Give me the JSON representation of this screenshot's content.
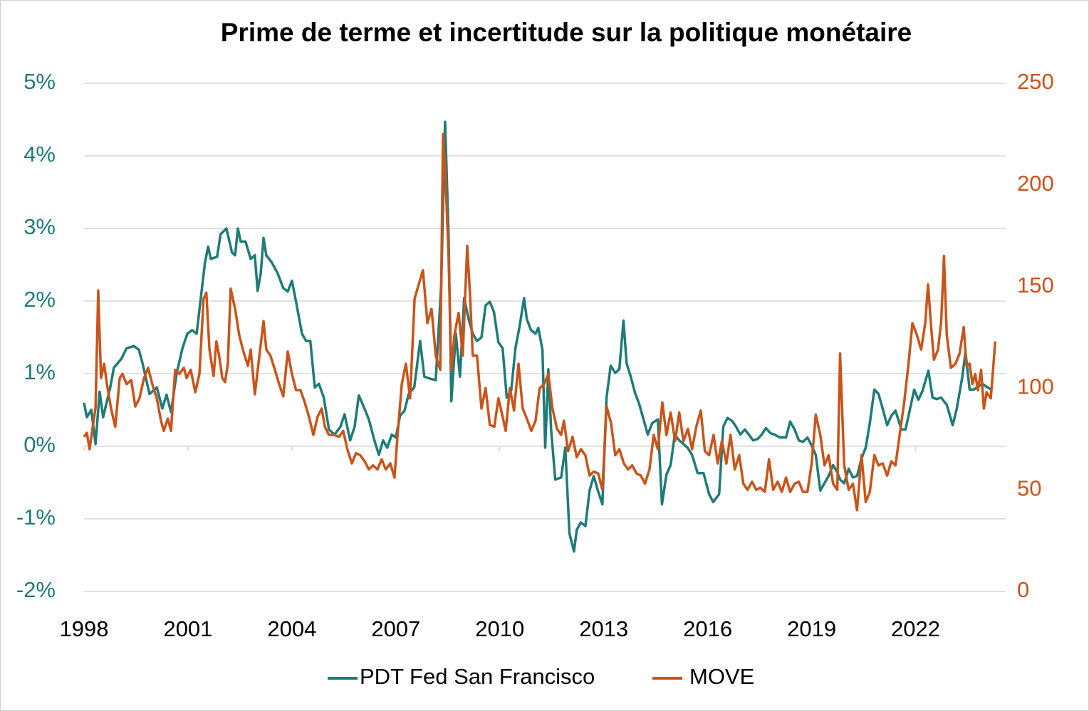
{
  "chart_data": {
    "type": "line",
    "title": "Prime de terme et incertitude sur la politique monétaire",
    "xlim": [
      1998,
      2024.6
    ],
    "xticks": [
      1998,
      2001,
      2004,
      2007,
      2010,
      2013,
      2016,
      2019,
      2022
    ],
    "ylim": [
      -2,
      5
    ],
    "yticks": [
      {
        "value": -2,
        "label": "-2%"
      },
      {
        "value": -1,
        "label": "-1%"
      },
      {
        "value": 0,
        "label": "0%"
      },
      {
        "value": 1,
        "label": "1%"
      },
      {
        "value": 2,
        "label": "2%"
      },
      {
        "value": 3,
        "label": "3%"
      },
      {
        "value": 4,
        "label": "4%"
      },
      {
        "value": 5,
        "label": "5%"
      }
    ],
    "y2lim": [
      0,
      250
    ],
    "y2ticks": [
      0,
      50,
      100,
      150,
      200,
      250
    ],
    "grid": true,
    "legend": "bottom",
    "series": [
      {
        "name": "PDT Fed San Francisco",
        "color": "#1f7b78",
        "x": [
          1998.0,
          1998.08,
          1998.21,
          1998.33,
          1998.45,
          1998.55,
          1998.76,
          1998.86,
          1999.07,
          1999.23,
          1999.44,
          1999.58,
          1999.68,
          1999.89,
          2000.1,
          2000.26,
          2000.38,
          2000.51,
          2000.67,
          2000.84,
          2000.98,
          2001.12,
          2001.25,
          2001.37,
          2001.49,
          2001.58,
          2001.66,
          2001.84,
          2001.94,
          2002.11,
          2002.27,
          2002.36,
          2002.44,
          2002.52,
          2002.66,
          2002.81,
          2002.93,
          2003.01,
          2003.1,
          2003.18,
          2003.26,
          2003.42,
          2003.59,
          2003.75,
          2003.88,
          2004.0,
          2004.12,
          2004.29,
          2004.41,
          2004.53,
          2004.66,
          2004.78,
          2004.92,
          2005.07,
          2005.23,
          2005.4,
          2005.52,
          2005.68,
          2005.81,
          2005.93,
          2006.05,
          2006.22,
          2006.38,
          2006.51,
          2006.63,
          2006.75,
          2006.88,
          2007.0,
          2007.12,
          2007.25,
          2007.37,
          2007.53,
          2007.7,
          2007.82,
          2007.99,
          2008.15,
          2008.31,
          2008.42,
          2008.52,
          2008.6,
          2008.73,
          2008.85,
          2008.97,
          2009.1,
          2009.22,
          2009.34,
          2009.47,
          2009.59,
          2009.71,
          2009.83,
          2009.96,
          2010.08,
          2010.2,
          2010.33,
          2010.45,
          2010.57,
          2010.7,
          2010.78,
          2010.9,
          2011.03,
          2011.11,
          2011.23,
          2011.31,
          2011.4,
          2011.48,
          2011.6,
          2011.77,
          2011.89,
          2012.01,
          2012.14,
          2012.22,
          2012.34,
          2012.47,
          2012.59,
          2012.71,
          2012.83,
          2012.96,
          2013.08,
          2013.2,
          2013.33,
          2013.45,
          2013.57,
          2013.66,
          2013.78,
          2013.9,
          2014.03,
          2014.15,
          2014.27,
          2014.4,
          2014.56,
          2014.68,
          2014.81,
          2014.93,
          2015.05,
          2015.18,
          2015.3,
          2015.42,
          2015.55,
          2015.71,
          2015.88,
          2016.04,
          2016.16,
          2016.33,
          2016.45,
          2016.57,
          2016.7,
          2016.82,
          2016.94,
          2017.07,
          2017.19,
          2017.31,
          2017.44,
          2017.56,
          2017.68,
          2017.81,
          2017.93,
          2018.09,
          2018.26,
          2018.38,
          2018.51,
          2018.63,
          2018.75,
          2018.88,
          2019.0,
          2019.12,
          2019.25,
          2019.37,
          2019.49,
          2019.62,
          2019.74,
          2019.82,
          2019.94,
          2020.07,
          2020.19,
          2020.31,
          2020.44,
          2020.56,
          2020.68,
          2020.81,
          2020.93,
          2021.05,
          2021.18,
          2021.3,
          2021.42,
          2021.59,
          2021.71,
          2021.83,
          2021.96,
          2022.08,
          2022.2,
          2022.37,
          2022.49,
          2022.61,
          2022.74,
          2022.9,
          2023.07,
          2023.19,
          2023.35,
          2023.44,
          2023.56,
          2023.68,
          2023.81,
          2023.93,
          2024.05,
          2024.18
        ],
        "values": [
          0.6,
          0.4,
          0.5,
          0.03,
          0.75,
          0.4,
          0.82,
          1.08,
          1.2,
          1.35,
          1.38,
          1.33,
          1.16,
          0.72,
          0.81,
          0.52,
          0.71,
          0.47,
          1.0,
          1.35,
          1.55,
          1.6,
          1.55,
          2.04,
          2.53,
          2.75,
          2.58,
          2.61,
          2.92,
          3.0,
          2.67,
          2.63,
          3.0,
          2.82,
          2.82,
          2.58,
          2.63,
          2.14,
          2.38,
          2.87,
          2.63,
          2.53,
          2.38,
          2.18,
          2.13,
          2.28,
          1.99,
          1.55,
          1.45,
          1.45,
          0.81,
          0.86,
          0.67,
          0.23,
          0.16,
          0.27,
          0.44,
          0.08,
          0.27,
          0.7,
          0.57,
          0.37,
          0.08,
          -0.12,
          0.08,
          -0.02,
          0.16,
          0.12,
          0.42,
          0.49,
          0.72,
          0.81,
          1.45,
          0.96,
          0.93,
          0.91,
          2.23,
          4.47,
          2.92,
          0.62,
          1.55,
          0.96,
          2.04,
          1.75,
          1.55,
          1.45,
          1.5,
          1.94,
          1.99,
          1.85,
          1.43,
          1.35,
          0.67,
          0.77,
          1.35,
          1.65,
          2.04,
          1.75,
          1.6,
          1.55,
          1.63,
          1.33,
          -0.02,
          1.06,
          0.23,
          -0.46,
          -0.43,
          -0.02,
          -1.2,
          -1.45,
          -1.15,
          -1.05,
          -1.1,
          -0.61,
          -0.41,
          -0.61,
          -0.8,
          0.67,
          1.11,
          1.01,
          1.06,
          1.73,
          1.14,
          0.96,
          0.74,
          0.57,
          0.37,
          0.16,
          0.32,
          0.37,
          -0.8,
          -0.39,
          -0.26,
          0.16,
          0.08,
          0.03,
          -0.02,
          -0.12,
          -0.37,
          -0.37,
          -0.66,
          -0.77,
          -0.66,
          0.27,
          0.39,
          0.35,
          0.27,
          0.16,
          0.23,
          0.16,
          0.08,
          0.1,
          0.16,
          0.25,
          0.18,
          0.16,
          0.12,
          0.12,
          0.34,
          0.23,
          0.08,
          0.06,
          0.12,
          0.01,
          -0.12,
          -0.61,
          -0.51,
          -0.41,
          -0.26,
          -0.36,
          -0.46,
          -0.51,
          -0.31,
          -0.43,
          -0.41,
          -0.17,
          -0.02,
          0.32,
          0.78,
          0.72,
          0.52,
          0.29,
          0.42,
          0.49,
          0.23,
          0.23,
          0.49,
          0.78,
          0.64,
          0.76,
          1.04,
          0.67,
          0.65,
          0.67,
          0.57,
          0.29,
          0.52,
          0.96,
          1.3,
          0.78,
          0.78,
          0.82,
          0.86,
          0.82,
          0.78
        ]
      },
      {
        "name": "MOVE",
        "color": "#c9541a",
        "axis": "y2",
        "x": [
          1998.0,
          1998.08,
          1998.16,
          1998.25,
          1998.33,
          1998.41,
          1998.49,
          1998.58,
          1998.66,
          1998.78,
          1998.9,
          1999.03,
          1999.11,
          1999.23,
          1999.36,
          1999.48,
          1999.6,
          1999.73,
          1999.85,
          1999.97,
          2000.1,
          2000.22,
          2000.3,
          2000.42,
          2000.51,
          2000.63,
          2000.75,
          2000.88,
          2000.96,
          2001.08,
          2001.21,
          2001.33,
          2001.45,
          2001.53,
          2001.62,
          2001.74,
          2001.82,
          2001.9,
          2001.99,
          2002.07,
          2002.15,
          2002.23,
          2002.36,
          2002.48,
          2002.6,
          2002.73,
          2002.81,
          2002.93,
          2003.06,
          2003.18,
          2003.26,
          2003.38,
          2003.51,
          2003.63,
          2003.75,
          2003.88,
          2004.0,
          2004.12,
          2004.25,
          2004.37,
          2004.49,
          2004.62,
          2004.74,
          2004.86,
          2004.95,
          2005.07,
          2005.23,
          2005.36,
          2005.48,
          2005.6,
          2005.73,
          2005.85,
          2005.97,
          2006.1,
          2006.22,
          2006.34,
          2006.47,
          2006.59,
          2006.71,
          2006.84,
          2006.96,
          2007.04,
          2007.17,
          2007.29,
          2007.41,
          2007.54,
          2007.66,
          2007.78,
          2007.91,
          2008.03,
          2008.15,
          2008.28,
          2008.36,
          2008.44,
          2008.52,
          2008.6,
          2008.69,
          2008.81,
          2008.93,
          2009.06,
          2009.14,
          2009.22,
          2009.34,
          2009.47,
          2009.59,
          2009.71,
          2009.84,
          2009.96,
          2010.08,
          2010.17,
          2010.29,
          2010.41,
          2010.54,
          2010.66,
          2010.78,
          2010.91,
          2011.03,
          2011.15,
          2011.28,
          2011.4,
          2011.52,
          2011.65,
          2011.77,
          2011.85,
          2011.97,
          2012.1,
          2012.22,
          2012.34,
          2012.47,
          2012.59,
          2012.71,
          2012.84,
          2012.96,
          2013.08,
          2013.21,
          2013.33,
          2013.45,
          2013.58,
          2013.7,
          2013.82,
          2013.95,
          2014.07,
          2014.19,
          2014.32,
          2014.44,
          2014.56,
          2014.69,
          2014.81,
          2014.93,
          2015.06,
          2015.18,
          2015.3,
          2015.43,
          2015.55,
          2015.67,
          2015.8,
          2015.92,
          2016.04,
          2016.17,
          2016.29,
          2016.41,
          2016.54,
          2016.66,
          2016.78,
          2016.91,
          2017.03,
          2017.15,
          2017.28,
          2017.4,
          2017.52,
          2017.65,
          2017.77,
          2017.89,
          2018.02,
          2018.14,
          2018.26,
          2018.38,
          2018.51,
          2018.63,
          2018.75,
          2018.88,
          2019.0,
          2019.12,
          2019.25,
          2019.37,
          2019.49,
          2019.62,
          2019.74,
          2019.82,
          2019.94,
          2020.07,
          2020.19,
          2020.31,
          2020.44,
          2020.56,
          2020.68,
          2020.81,
          2020.93,
          2021.05,
          2021.18,
          2021.3,
          2021.42,
          2021.54,
          2021.67,
          2021.79,
          2021.91,
          2022.04,
          2022.16,
          2022.28,
          2022.36,
          2022.45,
          2022.53,
          2022.65,
          2022.74,
          2022.82,
          2022.9,
          2023.02,
          2023.15,
          2023.27,
          2023.39,
          2023.47,
          2023.56,
          2023.64,
          2023.72,
          2023.8,
          2023.89,
          2023.97,
          2024.05,
          2024.17,
          2024.3
        ],
        "values": [
          76,
          78,
          70,
          81,
          90,
          148,
          105,
          112,
          102,
          90,
          81,
          105,
          107,
          102,
          104,
          91,
          95,
          105,
          110,
          102,
          95,
          84,
          79,
          85,
          79,
          109,
          107,
          110,
          105,
          109,
          98,
          107,
          144,
          147,
          119,
          106,
          123,
          116,
          105,
          103,
          112,
          149,
          139,
          126,
          118,
          111,
          119,
          97,
          116,
          133,
          119,
          116,
          109,
          102,
          96,
          118,
          107,
          99,
          99,
          93,
          86,
          77,
          86,
          90,
          81,
          77,
          77,
          76,
          79,
          70,
          63,
          68,
          67,
          64,
          60,
          62,
          60,
          65,
          60,
          63,
          56,
          75,
          102,
          112,
          95,
          144,
          151,
          158,
          132,
          139,
          116,
          109,
          225,
          200,
          165,
          109,
          126,
          137,
          116,
          170,
          146,
          116,
          116,
          90,
          100,
          82,
          81,
          95,
          86,
          79,
          100,
          89,
          112,
          90,
          85,
          79,
          84,
          100,
          102,
          107,
          90,
          80,
          77,
          84,
          69,
          76,
          66,
          70,
          67,
          57,
          59,
          58,
          50,
          91,
          83,
          67,
          70,
          63,
          60,
          62,
          58,
          57,
          53,
          60,
          77,
          70,
          93,
          77,
          88,
          74,
          88,
          74,
          80,
          70,
          81,
          89,
          69,
          67,
          77,
          63,
          74,
          63,
          77,
          60,
          67,
          53,
          50,
          54,
          50,
          51,
          49,
          65,
          50,
          54,
          49,
          56,
          49,
          53,
          54,
          49,
          49,
          63,
          87,
          77,
          62,
          67,
          53,
          50,
          117,
          62,
          50,
          53,
          40,
          67,
          44,
          49,
          67,
          62,
          63,
          57,
          64,
          62,
          77,
          93,
          111,
          132,
          126,
          119,
          132,
          151,
          130,
          114,
          119,
          133,
          165,
          126,
          110,
          112,
          117,
          130,
          111,
          112,
          102,
          107,
          99,
          109,
          90,
          98,
          95,
          123
        ]
      }
    ]
  }
}
